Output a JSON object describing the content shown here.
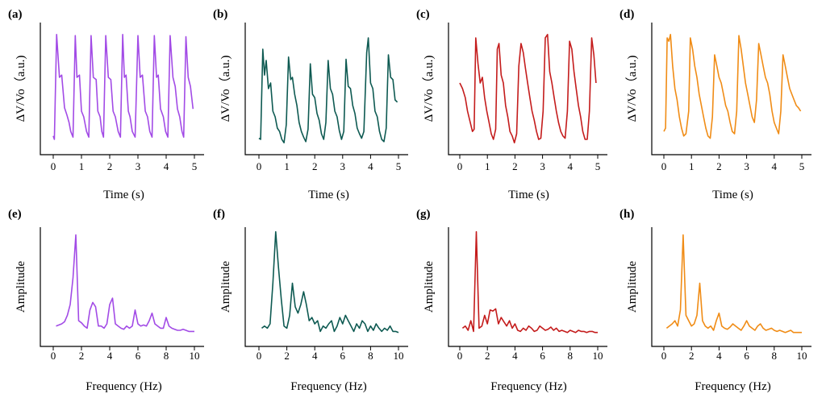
{
  "colors": {
    "purple": "#a24be6",
    "teal": "#0e5a52",
    "red": "#c41c1c",
    "orange": "#f08c16"
  },
  "chart_data": [
    {
      "type": "line",
      "label": "(a)",
      "xlabel": "Time (s)",
      "ylabel": "ΔV/Vo（a.u.)",
      "xlim": [
        0,
        5
      ],
      "xticks": [
        "0",
        "1",
        "2",
        "3",
        "4",
        "5"
      ],
      "ylim": [
        0,
        1
      ],
      "color": "#a24be6",
      "x": [
        0.0,
        0.04,
        0.12,
        0.22,
        0.3,
        0.4,
        0.48,
        0.56,
        0.62,
        0.7,
        0.78,
        0.84,
        0.93,
        1.0,
        1.08,
        1.18,
        1.26,
        1.34,
        1.42,
        1.52,
        1.58,
        1.66,
        1.72,
        1.78,
        1.86,
        1.95,
        2.04,
        2.12,
        2.2,
        2.3,
        2.38,
        2.46,
        2.52,
        2.58,
        2.66,
        2.72,
        2.8,
        2.9,
        3.0,
        3.08,
        3.16,
        3.26,
        3.34,
        3.42,
        3.5,
        3.58,
        3.66,
        3.72,
        3.8,
        3.9,
        3.98,
        4.06,
        4.14,
        4.24,
        4.32,
        4.4,
        4.48,
        4.56,
        4.62,
        4.7,
        4.78,
        4.86,
        4.95
      ],
      "y": [
        0.08,
        0.05,
        0.98,
        0.6,
        0.62,
        0.33,
        0.27,
        0.2,
        0.12,
        0.07,
        0.97,
        0.6,
        0.62,
        0.3,
        0.25,
        0.12,
        0.07,
        0.97,
        0.6,
        0.58,
        0.3,
        0.25,
        0.12,
        0.07,
        0.97,
        0.6,
        0.58,
        0.3,
        0.25,
        0.12,
        0.07,
        0.98,
        0.6,
        0.62,
        0.3,
        0.25,
        0.12,
        0.07,
        0.97,
        0.6,
        0.62,
        0.3,
        0.25,
        0.12,
        0.07,
        0.97,
        0.6,
        0.62,
        0.32,
        0.25,
        0.12,
        0.07,
        0.97,
        0.6,
        0.52,
        0.32,
        0.25,
        0.12,
        0.07,
        0.96,
        0.6,
        0.52,
        0.32
      ]
    },
    {
      "type": "line",
      "label": "(b)",
      "xlabel": "Time (s)",
      "ylabel": "ΔV/Vo（a.u.)",
      "xlim": [
        0,
        5
      ],
      "xticks": [
        "0",
        "1",
        "2",
        "3",
        "4",
        "5"
      ],
      "ylim": [
        0,
        1
      ],
      "color": "#0e5a52",
      "x": [
        0.0,
        0.06,
        0.14,
        0.2,
        0.26,
        0.34,
        0.42,
        0.5,
        0.58,
        0.66,
        0.74,
        0.82,
        0.9,
        0.98,
        1.06,
        1.14,
        1.2,
        1.28,
        1.36,
        1.44,
        1.52,
        1.6,
        1.68,
        1.76,
        1.84,
        1.92,
        2.0,
        2.08,
        2.16,
        2.24,
        2.32,
        2.4,
        2.48,
        2.56,
        2.64,
        2.72,
        2.8,
        2.88,
        2.96,
        3.04,
        3.12,
        3.2,
        3.28,
        3.36,
        3.44,
        3.52,
        3.6,
        3.68,
        3.76,
        3.86,
        3.92,
        4.0,
        4.08,
        4.16,
        4.24,
        4.32,
        4.4,
        4.48,
        4.56,
        4.64,
        4.72,
        4.8,
        4.88,
        4.96
      ],
      "y": [
        0.06,
        0.05,
        0.85,
        0.62,
        0.75,
        0.5,
        0.55,
        0.3,
        0.25,
        0.15,
        0.12,
        0.05,
        0.02,
        0.18,
        0.78,
        0.58,
        0.6,
        0.45,
        0.35,
        0.2,
        0.12,
        0.07,
        0.03,
        0.14,
        0.72,
        0.45,
        0.42,
        0.28,
        0.22,
        0.1,
        0.05,
        0.2,
        0.75,
        0.5,
        0.45,
        0.3,
        0.25,
        0.13,
        0.05,
        0.12,
        0.76,
        0.52,
        0.5,
        0.35,
        0.28,
        0.15,
        0.1,
        0.06,
        0.12,
        0.82,
        0.95,
        0.55,
        0.5,
        0.3,
        0.25,
        0.12,
        0.05,
        0.03,
        0.15,
        0.8,
        0.6,
        0.58,
        0.4,
        0.38
      ]
    },
    {
      "type": "line",
      "label": "(c)",
      "xlabel": "Time (s)",
      "ylabel": "ΔV/Vo（a.u.)",
      "xlim": [
        0,
        5
      ],
      "xticks": [
        "0",
        "1",
        "2",
        "3",
        "4",
        "5"
      ],
      "ylim": [
        0,
        1
      ],
      "color": "#c41c1c",
      "x": [
        0.0,
        0.1,
        0.2,
        0.28,
        0.36,
        0.46,
        0.52,
        0.58,
        0.66,
        0.74,
        0.82,
        0.9,
        0.98,
        1.06,
        1.14,
        1.22,
        1.3,
        1.36,
        1.42,
        1.5,
        1.58,
        1.66,
        1.74,
        1.82,
        1.9,
        1.98,
        2.06,
        2.14,
        2.22,
        2.3,
        2.38,
        2.46,
        2.54,
        2.62,
        2.7,
        2.78,
        2.86,
        2.94,
        3.02,
        3.1,
        3.18,
        3.26,
        3.34,
        3.42,
        3.5,
        3.58,
        3.66,
        3.74,
        3.82,
        3.9,
        3.98,
        4.06,
        4.14,
        4.22,
        4.3,
        4.38,
        4.46,
        4.54,
        4.62,
        4.7,
        4.78,
        4.86,
        4.94
      ],
      "y": [
        0.55,
        0.5,
        0.42,
        0.3,
        0.22,
        0.12,
        0.14,
        0.95,
        0.72,
        0.55,
        0.6,
        0.42,
        0.3,
        0.2,
        0.1,
        0.05,
        0.14,
        0.85,
        0.9,
        0.62,
        0.55,
        0.35,
        0.25,
        0.12,
        0.08,
        0.02,
        0.1,
        0.7,
        0.9,
        0.82,
        0.68,
        0.55,
        0.42,
        0.3,
        0.22,
        0.12,
        0.05,
        0.06,
        0.3,
        0.95,
        0.98,
        0.65,
        0.55,
        0.42,
        0.3,
        0.2,
        0.12,
        0.08,
        0.06,
        0.3,
        0.92,
        0.85,
        0.65,
        0.5,
        0.35,
        0.25,
        0.12,
        0.05,
        0.05,
        0.3,
        0.95,
        0.8,
        0.55
      ]
    },
    {
      "type": "line",
      "label": "(d)",
      "xlabel": "Time (s)",
      "ylabel": "ΔV/Vo（a.u.)",
      "xlim": [
        0,
        5
      ],
      "xticks": [
        "0",
        "1",
        "2",
        "3",
        "4",
        "5"
      ],
      "ylim": [
        0,
        1
      ],
      "color": "#f08c16",
      "x": [
        0.0,
        0.06,
        0.12,
        0.18,
        0.24,
        0.32,
        0.4,
        0.48,
        0.56,
        0.64,
        0.72,
        0.8,
        0.9,
        0.96,
        1.04,
        1.12,
        1.2,
        1.28,
        1.36,
        1.44,
        1.52,
        1.6,
        1.68,
        1.76,
        1.84,
        1.92,
        2.0,
        2.08,
        2.16,
        2.24,
        2.32,
        2.4,
        2.48,
        2.56,
        2.64,
        2.72,
        2.8,
        2.88,
        2.96,
        3.04,
        3.12,
        3.2,
        3.28,
        3.36,
        3.44,
        3.52,
        3.6,
        3.68,
        3.76,
        3.84,
        3.92,
        4.0,
        4.08,
        4.16,
        4.24,
        4.32,
        4.4,
        4.48,
        4.56,
        4.64,
        4.72,
        4.8,
        4.88,
        4.96
      ],
      "y": [
        0.12,
        0.15,
        0.95,
        0.92,
        0.98,
        0.7,
        0.5,
        0.4,
        0.25,
        0.15,
        0.08,
        0.1,
        0.3,
        0.95,
        0.85,
        0.7,
        0.6,
        0.45,
        0.35,
        0.25,
        0.15,
        0.08,
        0.06,
        0.25,
        0.8,
        0.7,
        0.6,
        0.55,
        0.45,
        0.35,
        0.3,
        0.2,
        0.12,
        0.1,
        0.3,
        0.97,
        0.85,
        0.7,
        0.55,
        0.45,
        0.35,
        0.25,
        0.2,
        0.4,
        0.9,
        0.8,
        0.7,
        0.6,
        0.55,
        0.45,
        0.3,
        0.2,
        0.15,
        0.1,
        0.3,
        0.8,
        0.7,
        0.6,
        0.5,
        0.45,
        0.4,
        0.35,
        0.33,
        0.3
      ]
    },
    {
      "type": "line",
      "label": "(e)",
      "xlabel": "Frequency (Hz)",
      "ylabel": "Amplitude",
      "xlim": [
        0,
        10
      ],
      "xticks": [
        "0",
        "2",
        "4",
        "6",
        "8",
        "10"
      ],
      "ylim": [
        0,
        1
      ],
      "color": "#a24be6",
      "x": [
        0.2,
        0.4,
        0.6,
        0.8,
        1.0,
        1.2,
        1.4,
        1.6,
        1.8,
        2.0,
        2.2,
        2.4,
        2.6,
        2.8,
        3.0,
        3.2,
        3.4,
        3.6,
        3.8,
        4.0,
        4.2,
        4.4,
        4.6,
        4.8,
        5.0,
        5.2,
        5.4,
        5.6,
        5.8,
        6.0,
        6.2,
        6.4,
        6.6,
        6.8,
        7.0,
        7.2,
        7.4,
        7.6,
        7.8,
        8.0,
        8.2,
        8.4,
        8.6,
        8.8,
        9.0,
        9.2,
        9.4,
        9.6,
        9.8,
        10.0
      ],
      "y": [
        0.1,
        0.11,
        0.12,
        0.14,
        0.2,
        0.3,
        0.55,
        0.95,
        0.15,
        0.13,
        0.1,
        0.08,
        0.25,
        0.32,
        0.28,
        0.1,
        0.1,
        0.08,
        0.12,
        0.3,
        0.36,
        0.12,
        0.1,
        0.08,
        0.07,
        0.1,
        0.08,
        0.1,
        0.25,
        0.12,
        0.1,
        0.11,
        0.1,
        0.15,
        0.22,
        0.12,
        0.1,
        0.08,
        0.08,
        0.18,
        0.1,
        0.08,
        0.07,
        0.06,
        0.06,
        0.07,
        0.06,
        0.05,
        0.05,
        0.05
      ]
    },
    {
      "type": "line",
      "label": "(f)",
      "xlabel": "Frequency (Hz)",
      "ylabel": "Amplitude",
      "xlim": [
        0,
        10
      ],
      "xticks": [
        "0",
        "2",
        "4",
        "6",
        "8",
        "10"
      ],
      "ylim": [
        0,
        1
      ],
      "color": "#0e5a52",
      "x": [
        0.2,
        0.4,
        0.6,
        0.8,
        1.0,
        1.2,
        1.4,
        1.6,
        1.8,
        2.0,
        2.2,
        2.4,
        2.6,
        2.8,
        3.0,
        3.2,
        3.4,
        3.6,
        3.8,
        4.0,
        4.2,
        4.4,
        4.6,
        4.8,
        5.0,
        5.2,
        5.4,
        5.6,
        5.8,
        6.0,
        6.2,
        6.4,
        6.6,
        6.8,
        7.0,
        7.2,
        7.4,
        7.6,
        7.8,
        8.0,
        8.2,
        8.4,
        8.6,
        8.8,
        9.0,
        9.2,
        9.4,
        9.6,
        9.8,
        10.0
      ],
      "y": [
        0.08,
        0.1,
        0.08,
        0.12,
        0.5,
        0.98,
        0.65,
        0.35,
        0.1,
        0.08,
        0.2,
        0.5,
        0.28,
        0.22,
        0.3,
        0.42,
        0.3,
        0.15,
        0.18,
        0.12,
        0.15,
        0.05,
        0.1,
        0.08,
        0.12,
        0.15,
        0.05,
        0.1,
        0.18,
        0.12,
        0.2,
        0.15,
        0.1,
        0.05,
        0.12,
        0.08,
        0.15,
        0.12,
        0.05,
        0.1,
        0.06,
        0.12,
        0.08,
        0.05,
        0.08,
        0.06,
        0.1,
        0.05,
        0.05,
        0.04
      ]
    },
    {
      "type": "line",
      "label": "(g)",
      "xlabel": "Frequency (Hz)",
      "ylabel": "Amplitude",
      "xlim": [
        0,
        10
      ],
      "xticks": [
        "0",
        "2",
        "4",
        "6",
        "8",
        "10"
      ],
      "ylim": [
        0,
        1
      ],
      "color": "#c41c1c",
      "x": [
        0.2,
        0.4,
        0.6,
        0.8,
        1.0,
        1.2,
        1.4,
        1.6,
        1.8,
        2.0,
        2.2,
        2.4,
        2.6,
        2.8,
        3.0,
        3.2,
        3.4,
        3.6,
        3.8,
        4.0,
        4.2,
        4.4,
        4.6,
        4.8,
        5.0,
        5.2,
        5.4,
        5.6,
        5.8,
        6.0,
        6.2,
        6.4,
        6.6,
        6.8,
        7.0,
        7.2,
        7.4,
        7.6,
        7.8,
        8.0,
        8.2,
        8.4,
        8.6,
        8.8,
        9.0,
        9.2,
        9.4,
        9.6,
        9.8,
        10.0
      ],
      "y": [
        0.08,
        0.1,
        0.06,
        0.15,
        0.05,
        0.98,
        0.08,
        0.1,
        0.2,
        0.12,
        0.25,
        0.24,
        0.26,
        0.12,
        0.18,
        0.14,
        0.1,
        0.15,
        0.08,
        0.12,
        0.06,
        0.05,
        0.08,
        0.06,
        0.1,
        0.08,
        0.05,
        0.06,
        0.1,
        0.08,
        0.06,
        0.07,
        0.09,
        0.06,
        0.08,
        0.05,
        0.06,
        0.05,
        0.04,
        0.06,
        0.05,
        0.04,
        0.06,
        0.05,
        0.05,
        0.04,
        0.05,
        0.05,
        0.04,
        0.04
      ]
    },
    {
      "type": "line",
      "label": "(h)",
      "xlabel": "Frequency (Hz)",
      "ylabel": "Amplitude",
      "xlim": [
        0,
        10
      ],
      "xticks": [
        "0",
        "2",
        "4",
        "6",
        "8",
        "10"
      ],
      "ylim": [
        0,
        1
      ],
      "color": "#f08c16",
      "x": [
        0.2,
        0.4,
        0.6,
        0.8,
        1.0,
        1.2,
        1.4,
        1.6,
        1.8,
        2.0,
        2.2,
        2.4,
        2.6,
        2.8,
        3.0,
        3.2,
        3.4,
        3.6,
        3.8,
        4.0,
        4.2,
        4.4,
        4.6,
        4.8,
        5.0,
        5.2,
        5.4,
        5.6,
        5.8,
        6.0,
        6.2,
        6.4,
        6.6,
        6.8,
        7.0,
        7.2,
        7.4,
        7.6,
        7.8,
        8.0,
        8.2,
        8.4,
        8.6,
        8.8,
        9.0,
        9.2,
        9.4,
        9.6,
        9.8,
        10.0
      ],
      "y": [
        0.08,
        0.1,
        0.12,
        0.15,
        0.1,
        0.25,
        0.95,
        0.2,
        0.15,
        0.1,
        0.12,
        0.2,
        0.5,
        0.15,
        0.1,
        0.08,
        0.1,
        0.06,
        0.15,
        0.22,
        0.1,
        0.08,
        0.07,
        0.09,
        0.12,
        0.1,
        0.08,
        0.06,
        0.1,
        0.15,
        0.1,
        0.08,
        0.06,
        0.1,
        0.12,
        0.08,
        0.06,
        0.07,
        0.08,
        0.06,
        0.05,
        0.06,
        0.05,
        0.04,
        0.05,
        0.06,
        0.04,
        0.04,
        0.04,
        0.04
      ]
    }
  ]
}
